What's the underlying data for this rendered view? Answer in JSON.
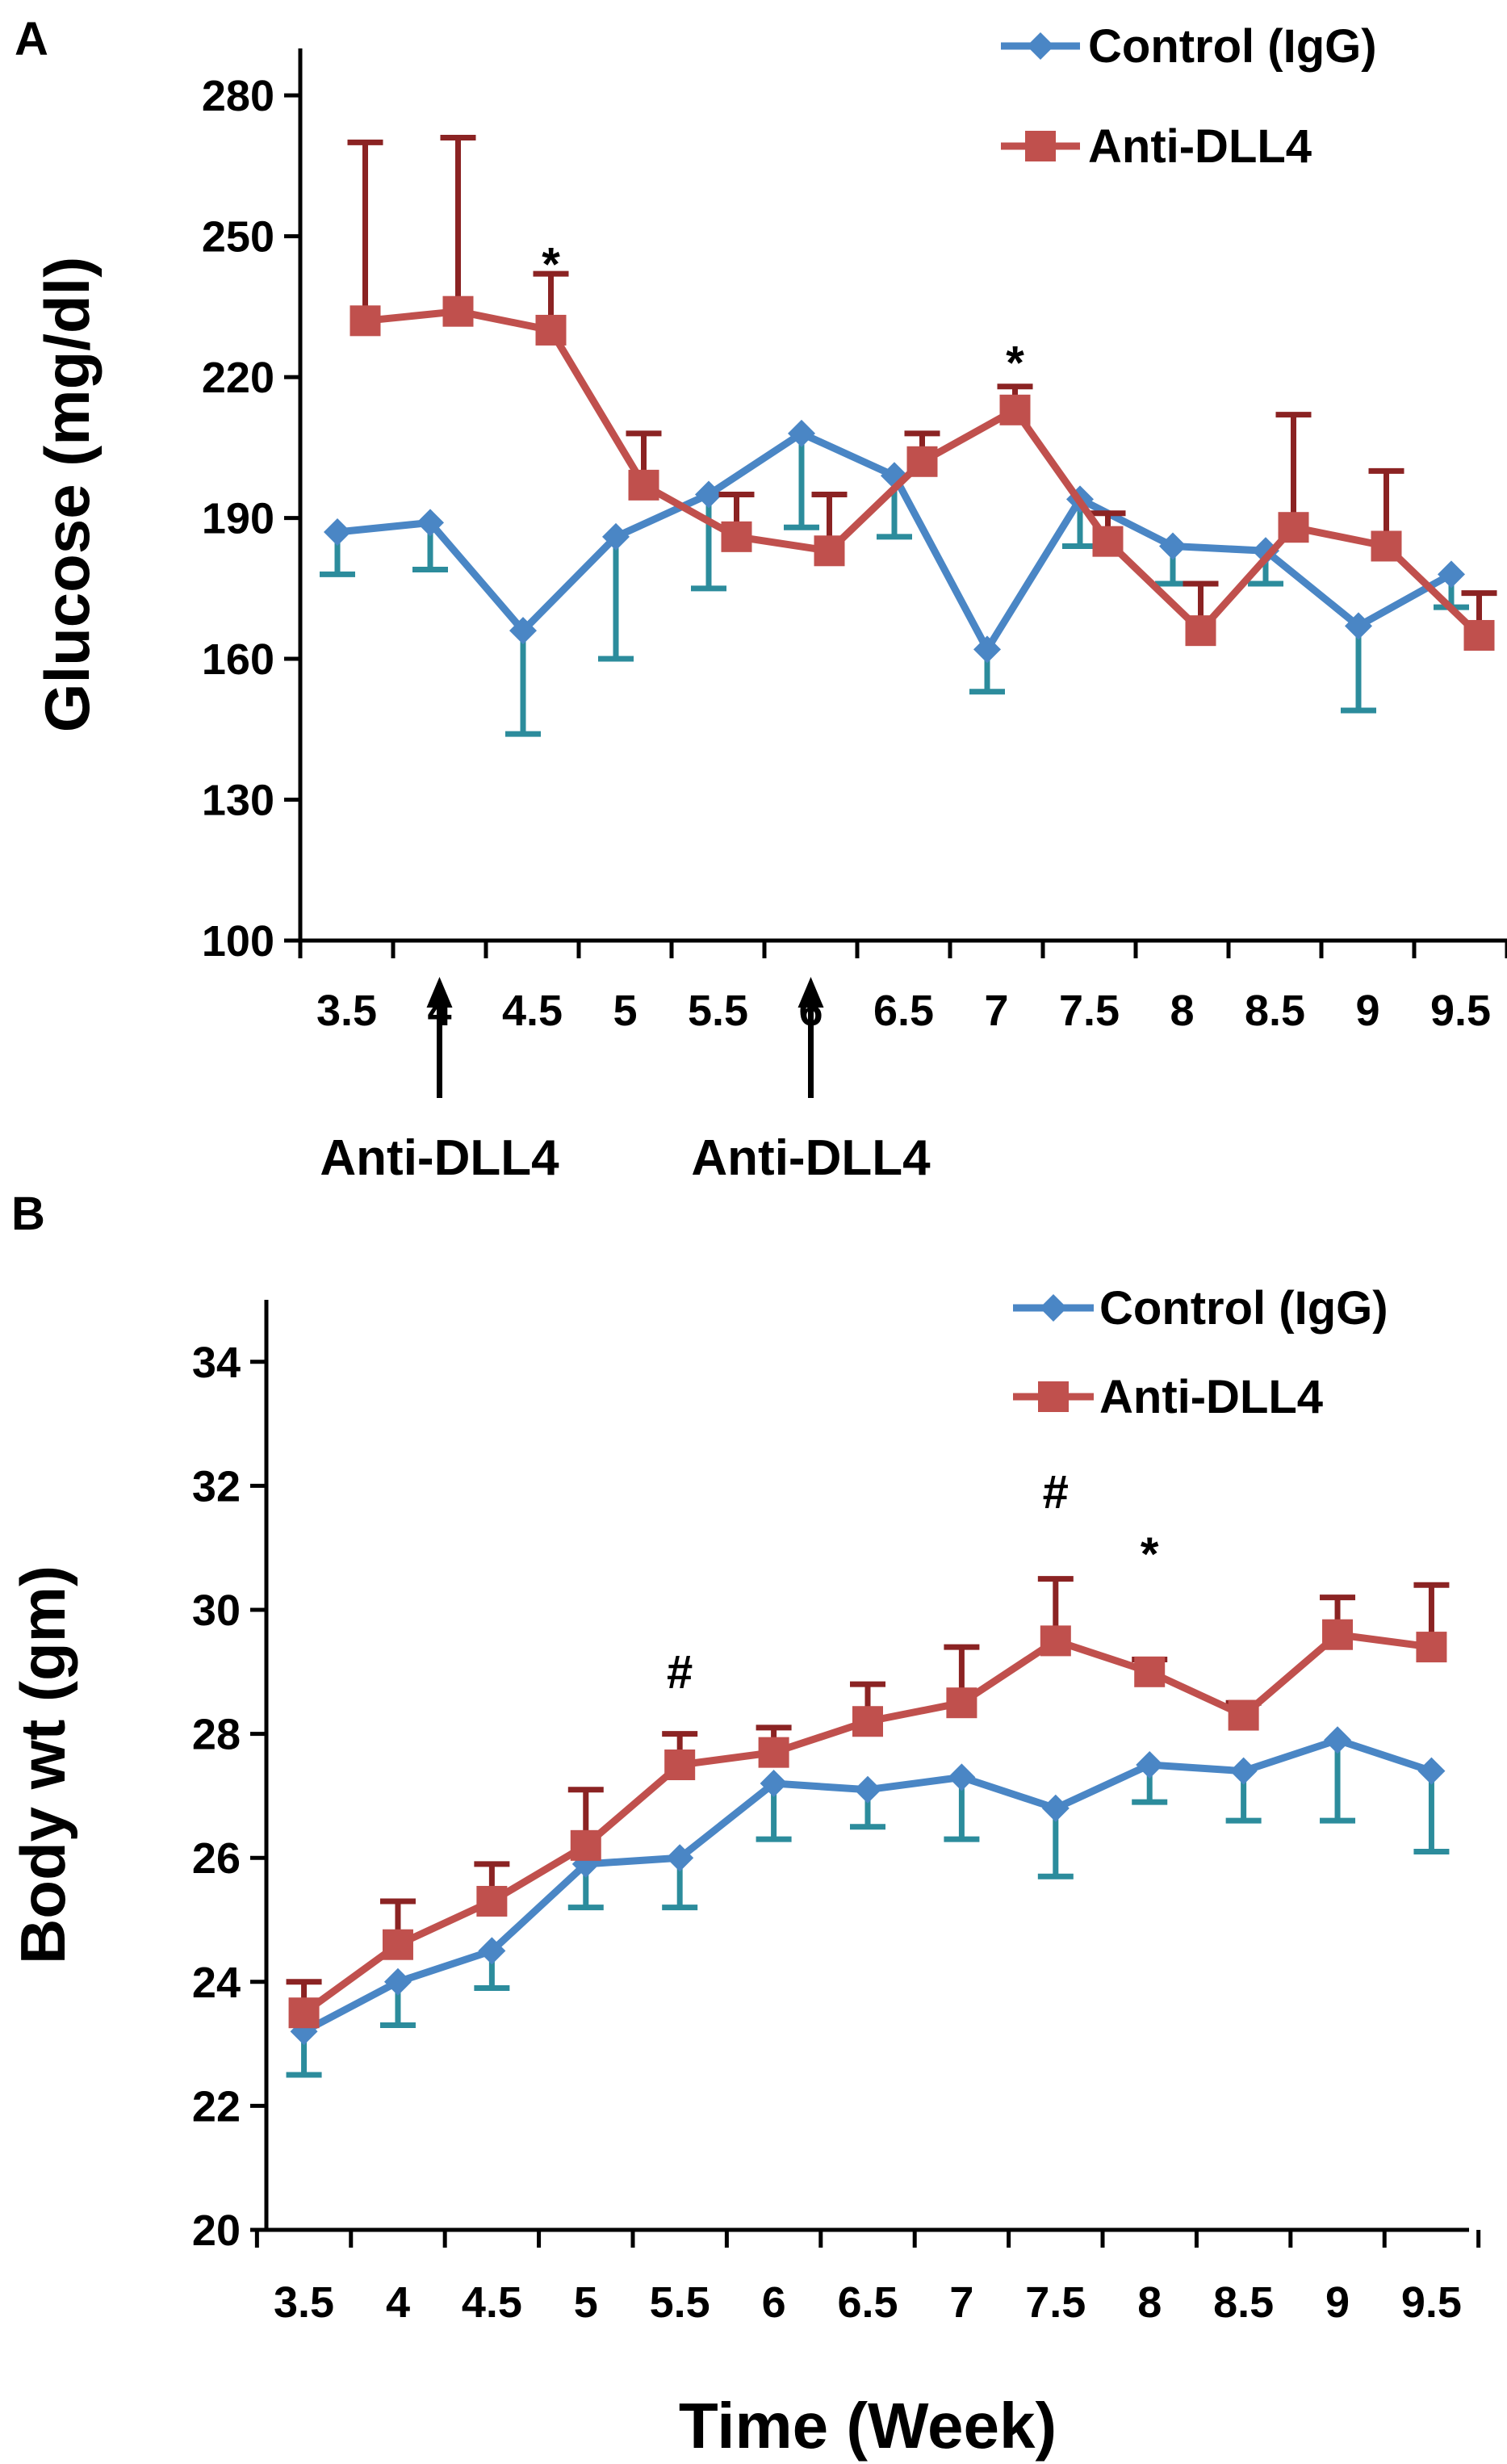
{
  "colors": {
    "control": "#4a86c5",
    "control_err": "#2c8c9c",
    "anti": "#c0504d",
    "anti_err": "#8b2323",
    "axis": "#000000"
  },
  "chart_data": [
    {
      "panel": "A",
      "type": "line",
      "ylabel": "Glucose (mg/dl)",
      "xlabel": "",
      "categories": [
        "3.5",
        "4",
        "4.5",
        "5",
        "5.5",
        "6",
        "6.5",
        "7",
        "7.5",
        "8",
        "8.5",
        "9",
        "9.5"
      ],
      "yticks": [
        "100",
        "130",
        "160",
        "190",
        "220",
        "250",
        "280"
      ],
      "ylim": [
        100,
        290
      ],
      "legend_position": "top-right",
      "series": [
        {
          "name": "Control (IgG)",
          "marker": "diamond",
          "x": [
            3.45,
            3.95,
            4.45,
            4.95,
            5.45,
            5.95,
            6.45,
            6.95,
            7.45,
            7.95,
            8.45,
            8.95,
            9.45
          ],
          "values": [
            187,
            189,
            166,
            186,
            195,
            208,
            199,
            162,
            194,
            184,
            183,
            167,
            178
          ],
          "error": [
            9,
            10,
            22,
            26,
            20,
            20,
            13,
            9,
            10,
            8,
            7,
            18,
            7
          ],
          "error_dir": "down"
        },
        {
          "name": "Anti-DLL4",
          "marker": "square",
          "x": [
            3.6,
            4.1,
            4.6,
            5.1,
            5.6,
            6.1,
            6.6,
            7.1,
            7.6,
            8.1,
            8.6,
            9.1,
            9.6
          ],
          "values": [
            232,
            234,
            230,
            197,
            186,
            183,
            202,
            213,
            185,
            166,
            188,
            184,
            165
          ],
          "error": [
            38,
            37,
            12,
            11,
            9,
            12,
            6,
            5,
            6,
            10,
            24,
            16,
            9
          ],
          "error_dir": "up"
        }
      ],
      "annotations": [
        {
          "text": "*",
          "x": 4.6,
          "y": 244
        },
        {
          "text": "*",
          "x": 7.1,
          "y": 223
        }
      ],
      "arrows": [
        {
          "label": "Anti-DLL4",
          "x": 4.0
        },
        {
          "label": "Anti-DLL4",
          "x": 6.0
        }
      ],
      "panel_label": "A"
    },
    {
      "panel": "B",
      "type": "line",
      "ylabel": "Body wt (gm)",
      "xlabel": "Time (Week)",
      "categories": [
        "3.5",
        "4",
        "4.5",
        "5",
        "5.5",
        "6",
        "6.5",
        "7",
        "7.5",
        "8",
        "8.5",
        "9",
        "9.5"
      ],
      "yticks": [
        "20",
        "22",
        "24",
        "26",
        "28",
        "30",
        "32",
        "34"
      ],
      "ylim": [
        20,
        35
      ],
      "legend_position": "top-right",
      "series": [
        {
          "name": "Control (IgG)",
          "marker": "diamond",
          "x": [
            3.5,
            4.0,
            4.5,
            5.0,
            5.5,
            6.0,
            6.5,
            7.0,
            7.5,
            8.0,
            8.5,
            9.0,
            9.5
          ],
          "values": [
            23.2,
            24.0,
            24.5,
            25.9,
            26.0,
            27.2,
            27.1,
            27.3,
            26.8,
            27.5,
            27.4,
            27.9,
            27.4
          ],
          "error": [
            0.7,
            0.7,
            0.6,
            0.7,
            0.8,
            0.9,
            0.6,
            1.0,
            1.1,
            0.6,
            0.8,
            1.3,
            1.3
          ],
          "error_dir": "down"
        },
        {
          "name": "Anti-DLL4",
          "marker": "square",
          "x": [
            3.5,
            4.0,
            4.5,
            5.0,
            5.5,
            6.0,
            6.5,
            7.0,
            7.5,
            8.0,
            8.5,
            9.0,
            9.5
          ],
          "values": [
            23.5,
            24.6,
            25.3,
            26.2,
            27.5,
            27.7,
            28.2,
            28.5,
            29.5,
            29.0,
            28.3,
            29.6,
            29.4
          ],
          "error": [
            0.5,
            0.7,
            0.6,
            0.9,
            0.5,
            0.4,
            0.6,
            0.9,
            1.0,
            0.2,
            0.2,
            0.6,
            1.0
          ],
          "error_dir": "up"
        }
      ],
      "annotations": [
        {
          "text": "#",
          "x": 5.5,
          "y": 29.0
        },
        {
          "text": "#",
          "x": 7.5,
          "y": 31.9
        },
        {
          "text": "*",
          "x": 8.0,
          "y": 30.9
        }
      ],
      "panel_label": "B"
    }
  ]
}
